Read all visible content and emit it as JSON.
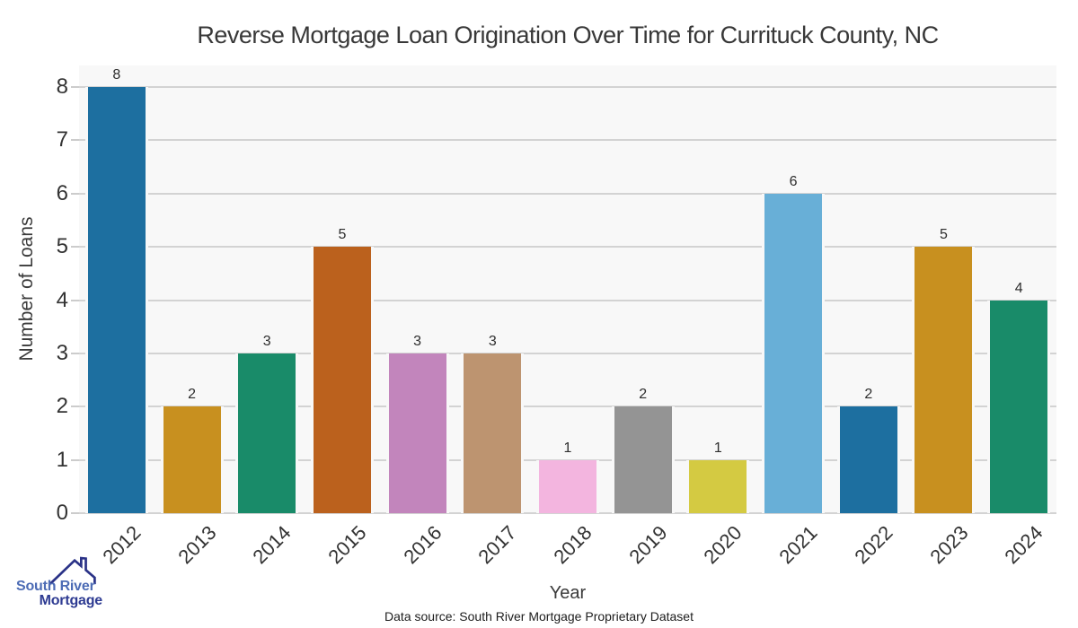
{
  "chart": {
    "title": "Reverse Mortgage Loan Origination Over Time for Currituck County, NC",
    "xlabel": "Year",
    "ylabel": "Number of Loans",
    "source_note": "Data source: South River Mortgage Proprietary Dataset"
  },
  "logo": {
    "line1": "South River",
    "line2": "Mortgage",
    "text_color_line1": "#4d6cb5",
    "text_color_line2": "#2e3b92",
    "roof_color": "#2a3287"
  },
  "chart_data": {
    "type": "bar",
    "title": "Reverse Mortgage Loan Origination Over Time for Currituck County, NC",
    "xlabel": "Year",
    "ylabel": "Number of Loans",
    "categories": [
      "2012",
      "2013",
      "2014",
      "2015",
      "2016",
      "2017",
      "2018",
      "2019",
      "2020",
      "2021",
      "2022",
      "2023",
      "2024"
    ],
    "values": [
      8,
      2,
      3,
      5,
      3,
      3,
      1,
      2,
      1,
      6,
      2,
      5,
      4
    ],
    "bar_colors": [
      "#1d6fa0",
      "#c8901f",
      "#198b69",
      "#bb611d",
      "#c285bc",
      "#bd9470",
      "#f3b5df",
      "#949494",
      "#d4ca42",
      "#68afd7",
      "#1d6fa0",
      "#c8901f",
      "#198b69"
    ],
    "yticks": [
      0,
      1,
      2,
      3,
      4,
      5,
      6,
      7,
      8
    ],
    "ylim": [
      0,
      8
    ],
    "grid": true,
    "legend": false,
    "value_labels": true,
    "plot_background": "#f8f8f8",
    "grid_color": "#d3d3d3"
  }
}
